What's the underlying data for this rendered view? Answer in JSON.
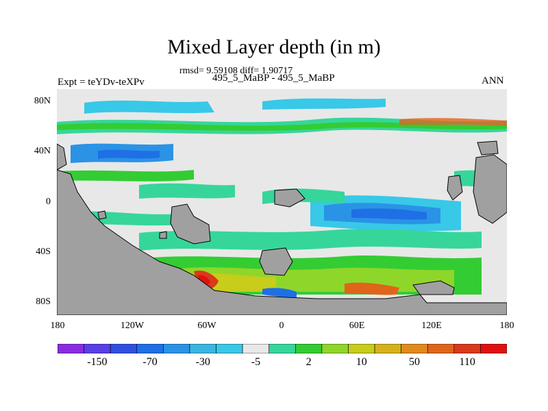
{
  "title": "Mixed Layer depth (in m)",
  "subtitle": "rmsd= 9.59108 diff= 1.90717",
  "left_label": "Expt = teYDv-teXPv",
  "center_label": "495_5_MaBP - 495_5_MaBP",
  "right_label": "ANN",
  "chart_data": {
    "type": "heatmap",
    "title": "Mixed Layer depth (in m)",
    "xlabel": "",
    "ylabel": "",
    "xlim": [
      -180,
      180
    ],
    "ylim": [
      -90,
      90
    ],
    "x_ticks": [
      -180,
      -120,
      -60,
      0,
      60,
      120,
      180
    ],
    "x_tick_labels": [
      "180",
      "120W",
      "60W",
      "0",
      "60E",
      "120E",
      "180"
    ],
    "y_ticks": [
      80,
      40,
      0,
      -40,
      -80
    ],
    "y_tick_labels": [
      "80N",
      "40N",
      "0",
      "40S",
      "80S"
    ],
    "land_color": "#a0a0a0",
    "colorbar": {
      "colors": [
        "#8a2be2",
        "#5a3ee6",
        "#2f4fe0",
        "#1f6fe6",
        "#2a93e6",
        "#3ab6e0",
        "#38c8e8",
        "#e8e8e8",
        "#36d69a",
        "#33cc33",
        "#8fd62a",
        "#c8cc1a",
        "#d7b11a",
        "#e08a1a",
        "#e0641a",
        "#d93a1a",
        "#e01010"
      ],
      "labels": [
        "-150",
        "-70",
        "-30",
        "-5",
        "2",
        "10",
        "50",
        "110"
      ],
      "label_color_index": [
        1,
        3,
        5,
        7,
        9,
        11,
        13,
        15
      ]
    }
  }
}
